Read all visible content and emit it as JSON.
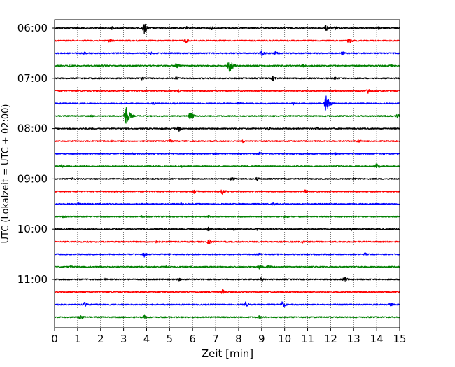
{
  "chart_data": {
    "type": "line",
    "title": "",
    "xlabel": "Zeit  [min]",
    "ylabel": "UTC (Lokalzeit = UTC + 02:00)",
    "xlim": [
      0,
      15
    ],
    "xticks": [
      0,
      1,
      2,
      3,
      4,
      5,
      6,
      7,
      8,
      9,
      10,
      11,
      12,
      13,
      14,
      15
    ],
    "ylim": [
      "06:00",
      "12:00"
    ],
    "yticks": [
      "06:00",
      "07:00",
      "08:00",
      "09:00",
      "10:00",
      "11:00"
    ],
    "grid": "vertical dotted",
    "trace_interval_min": 15,
    "color_cycle": [
      "#000000",
      "#ff0000",
      "#0000ff",
      "#008000"
    ],
    "traces": [
      {
        "start": "06:00",
        "events": [
          [
            3.9,
            8
          ],
          [
            0.9,
            2.5
          ],
          [
            2.5,
            2.5
          ],
          [
            5.7,
            3
          ],
          [
            6.8,
            3
          ],
          [
            11.8,
            5
          ],
          [
            12.2,
            3
          ],
          [
            14.1,
            3
          ],
          [
            8.0,
            2
          ]
        ]
      },
      {
        "start": "06:15",
        "events": [
          [
            2.4,
            3
          ],
          [
            5.7,
            4
          ],
          [
            12.8,
            4.5
          ]
        ]
      },
      {
        "start": "06:30",
        "events": [
          [
            9.0,
            5
          ],
          [
            9.6,
            3
          ],
          [
            12.5,
            3
          ],
          [
            1.3,
            2
          ],
          [
            4.2,
            2
          ]
        ]
      },
      {
        "start": "06:45",
        "events": [
          [
            0.7,
            4
          ],
          [
            5.3,
            4.5
          ],
          [
            7.6,
            11
          ],
          [
            10.8,
            3
          ],
          [
            2.1,
            2
          ],
          [
            14.6,
            2
          ]
        ]
      },
      {
        "start": "07:00",
        "events": [
          [
            3.8,
            2.5
          ],
          [
            5.3,
            2.5
          ],
          [
            9.5,
            4
          ],
          [
            12.2,
            2.5
          ]
        ]
      },
      {
        "start": "07:15",
        "events": [
          [
            5.4,
            3
          ],
          [
            13.6,
            4.5
          ],
          [
            12.2,
            2
          ]
        ]
      },
      {
        "start": "07:30",
        "events": [
          [
            11.8,
            13
          ],
          [
            4.3,
            2.5
          ],
          [
            10.4,
            2.5
          ],
          [
            8.0,
            2
          ]
        ]
      },
      {
        "start": "07:45",
        "events": [
          [
            3.1,
            16
          ],
          [
            5.9,
            6
          ],
          [
            14.9,
            3
          ],
          [
            1.6,
            2
          ]
        ]
      },
      {
        "start": "08:00",
        "events": [
          [
            5.4,
            4.5
          ],
          [
            9.3,
            2.5
          ],
          [
            11.4,
            2.5
          ]
        ]
      },
      {
        "start": "08:15",
        "events": [
          [
            5.0,
            3
          ],
          [
            8.2,
            2.5
          ],
          [
            13.2,
            3
          ],
          [
            2.5,
            2
          ]
        ]
      },
      {
        "start": "08:30",
        "events": [
          [
            7.0,
            2.5
          ],
          [
            8.9,
            2.5
          ],
          [
            12.2,
            2.5
          ],
          [
            3.4,
            2
          ]
        ]
      },
      {
        "start": "08:45",
        "events": [
          [
            0.3,
            3
          ],
          [
            14.0,
            4.5
          ],
          [
            12.3,
            2.5
          ],
          [
            5.5,
            2
          ]
        ]
      },
      {
        "start": "09:00",
        "events": [
          [
            7.7,
            3
          ],
          [
            8.8,
            3
          ],
          [
            0.8,
            2
          ],
          [
            13.0,
            2
          ]
        ]
      },
      {
        "start": "09:15",
        "events": [
          [
            6.1,
            4.5
          ],
          [
            7.3,
            4.5
          ],
          [
            10.9,
            4
          ],
          [
            2.6,
            2
          ]
        ]
      },
      {
        "start": "09:30",
        "events": [
          [
            1.0,
            2.5
          ],
          [
            9.5,
            2.5
          ],
          [
            5.5,
            2
          ]
        ]
      },
      {
        "start": "09:45",
        "events": [
          [
            0.4,
            2.5
          ],
          [
            10.0,
            3
          ],
          [
            3.8,
            2
          ],
          [
            6.7,
            2
          ]
        ]
      },
      {
        "start": "10:00",
        "events": [
          [
            6.7,
            3.5
          ],
          [
            7.8,
            3
          ],
          [
            8.8,
            3
          ],
          [
            12.9,
            2.5
          ]
        ]
      },
      {
        "start": "10:15",
        "events": [
          [
            6.7,
            4
          ],
          [
            4.4,
            2
          ],
          [
            10.8,
            2
          ]
        ]
      },
      {
        "start": "10:30",
        "events": [
          [
            3.9,
            4
          ],
          [
            13.5,
            2.5
          ],
          [
            8.9,
            2
          ]
        ]
      },
      {
        "start": "10:45",
        "events": [
          [
            4.9,
            3
          ],
          [
            8.9,
            3.5
          ],
          [
            9.3,
            2.5
          ],
          [
            0.7,
            2
          ]
        ]
      },
      {
        "start": "11:00",
        "events": [
          [
            5.4,
            2.5
          ],
          [
            9.0,
            3.5
          ],
          [
            12.6,
            4.5
          ],
          [
            2.2,
            2
          ]
        ]
      },
      {
        "start": "11:15",
        "events": [
          [
            7.3,
            4
          ],
          [
            2.0,
            2
          ],
          [
            13.3,
            2
          ]
        ]
      },
      {
        "start": "11:30",
        "events": [
          [
            1.3,
            4
          ],
          [
            8.3,
            4
          ],
          [
            9.9,
            5
          ],
          [
            14.6,
            3
          ]
        ]
      },
      {
        "start": "11:45",
        "events": [
          [
            1.1,
            4
          ],
          [
            3.9,
            3
          ],
          [
            8.9,
            2.5
          ],
          [
            11.1,
            2
          ]
        ]
      }
    ]
  }
}
